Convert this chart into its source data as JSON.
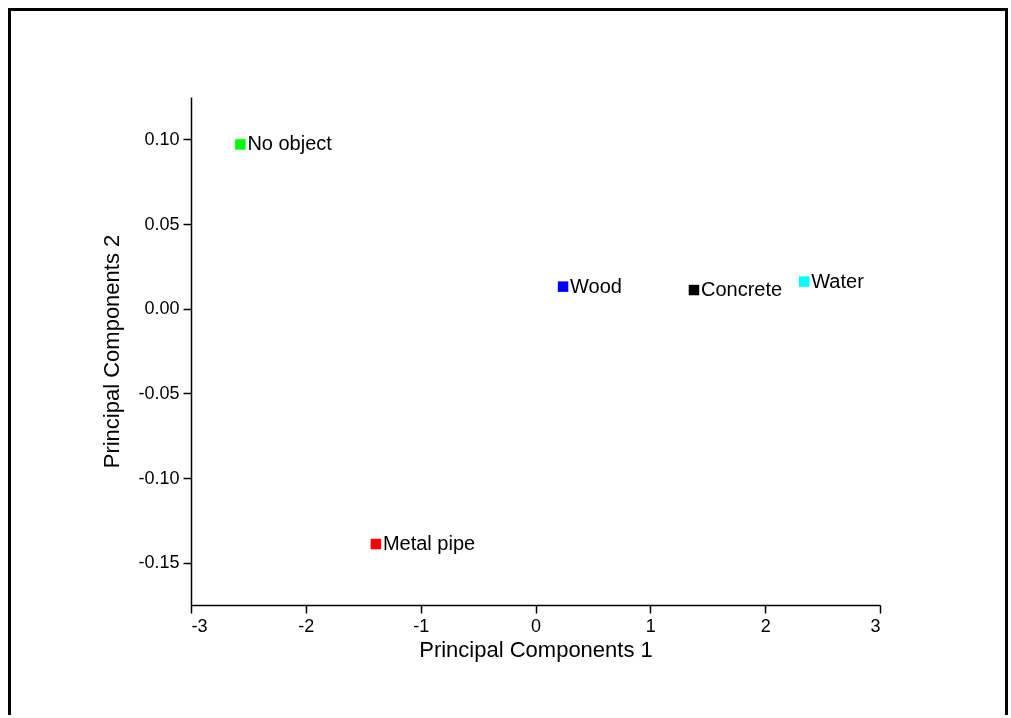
{
  "chart_data": {
    "type": "scatter",
    "xlabel": "Principal Components 1",
    "ylabel": "Principal Components 2",
    "x": [
      -2.57,
      0.24,
      1.38,
      2.34,
      -1.39
    ],
    "values": [
      0.097,
      0.013,
      0.011,
      0.016,
      -0.139
    ],
    "colors": [
      "#00ff00",
      "#0000ff",
      "#000000",
      "#00ffff",
      "#ff0000"
    ],
    "marker": "square",
    "xlim": [
      -3,
      3
    ],
    "xticks": [
      -3,
      -2,
      -1,
      0,
      1,
      2,
      3
    ],
    "ylim": [
      -0.175,
      0.125
    ],
    "yticks": [
      {
        "value": -0.15,
        "label": "-0.15"
      },
      {
        "value": -0.1,
        "label": "-0.10"
      },
      {
        "value": -0.05,
        "label": "-0.05"
      },
      {
        "value": 0,
        "label": "0.00"
      },
      {
        "value": 0.05,
        "label": "0.05"
      },
      {
        "value": 0.1,
        "label": "0.10"
      }
    ],
    "grid": false,
    "annotations": [
      {
        "text": "No object",
        "x": -2.57,
        "y": 0.097
      },
      {
        "text": "Wood",
        "x": 0.24,
        "y": 0.013
      },
      {
        "text": "Concrete",
        "x": 1.38,
        "y": 0.011
      },
      {
        "text": "Water",
        "x": 2.34,
        "y": 0.016
      },
      {
        "text": "Metal pipe",
        "x": -1.39,
        "y": -0.139
      }
    ]
  }
}
